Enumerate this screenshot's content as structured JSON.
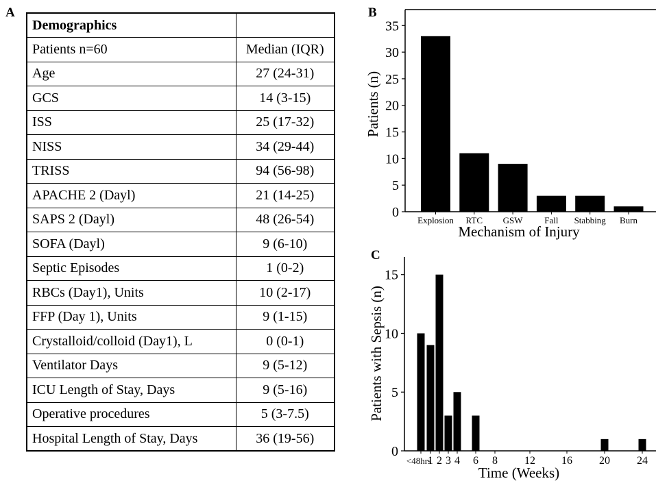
{
  "panels": {
    "a": "A",
    "b": "B",
    "c": "C"
  },
  "table": {
    "header": "Demographics",
    "rows": [
      [
        "Patients n=60",
        "Median (IQR)"
      ],
      [
        "Age",
        "27 (24-31)"
      ],
      [
        "GCS",
        "14 (3-15)"
      ],
      [
        "ISS",
        "25 (17-32)"
      ],
      [
        "NISS",
        "34  (29-44)"
      ],
      [
        "TRISS",
        "94 (56-98)"
      ],
      [
        "APACHE 2 (Dayl)",
        "21 (14-25)"
      ],
      [
        "SAPS 2 (Dayl)",
        "48 (26-54)"
      ],
      [
        "SOFA (Dayl)",
        "9 (6-10)"
      ],
      [
        "Septic Episodes",
        "1 (0-2)"
      ],
      [
        "RBCs (Day1), Units",
        "10 (2-17)"
      ],
      [
        "FFP   (Day 1), Units",
        "9 (1-15)"
      ],
      [
        "Crystalloid/colloid (Day1), L",
        "0 (0-1)"
      ],
      [
        "Ventilator Days",
        "9 (5-12)"
      ],
      [
        "ICU Length of Stay, Days",
        "9 (5-16)"
      ],
      [
        "Operative procedures",
        "5 (3-7.5)"
      ],
      [
        "Hospital Length of Stay, Days",
        "36 (19-56)"
      ]
    ]
  },
  "chart_data": [
    {
      "type": "bar",
      "panel": "B",
      "categories": [
        "Explosion",
        "RTC",
        "GSW",
        "Fall",
        "Stabbing",
        "Burn"
      ],
      "values": [
        33,
        11,
        9,
        3,
        3,
        1
      ],
      "xlabel": "Mechanism of Injury",
      "ylabel": "Patients (n)",
      "ylim": [
        0,
        38
      ],
      "yticks": [
        0,
        5,
        10,
        15,
        20,
        25,
        30,
        35
      ],
      "bar_color": "#000000"
    },
    {
      "type": "bar",
      "panel": "C",
      "x": [
        "<48hrs",
        "1",
        "2",
        "3",
        "4",
        "6",
        "20",
        "24"
      ],
      "values": [
        10,
        9,
        15,
        3,
        5,
        3,
        1,
        1
      ],
      "xlabel": "Time (Weeks)",
      "ylabel": "Patients with Sepsis (n)",
      "xticks": [
        "<48hrs",
        "1",
        "2",
        "3",
        "4",
        "6",
        "8",
        "12",
        "16",
        "20",
        "24"
      ],
      "yticks": [
        0,
        5,
        10,
        15
      ],
      "ylim": [
        0,
        16.5
      ],
      "bar_color": "#000000"
    }
  ]
}
